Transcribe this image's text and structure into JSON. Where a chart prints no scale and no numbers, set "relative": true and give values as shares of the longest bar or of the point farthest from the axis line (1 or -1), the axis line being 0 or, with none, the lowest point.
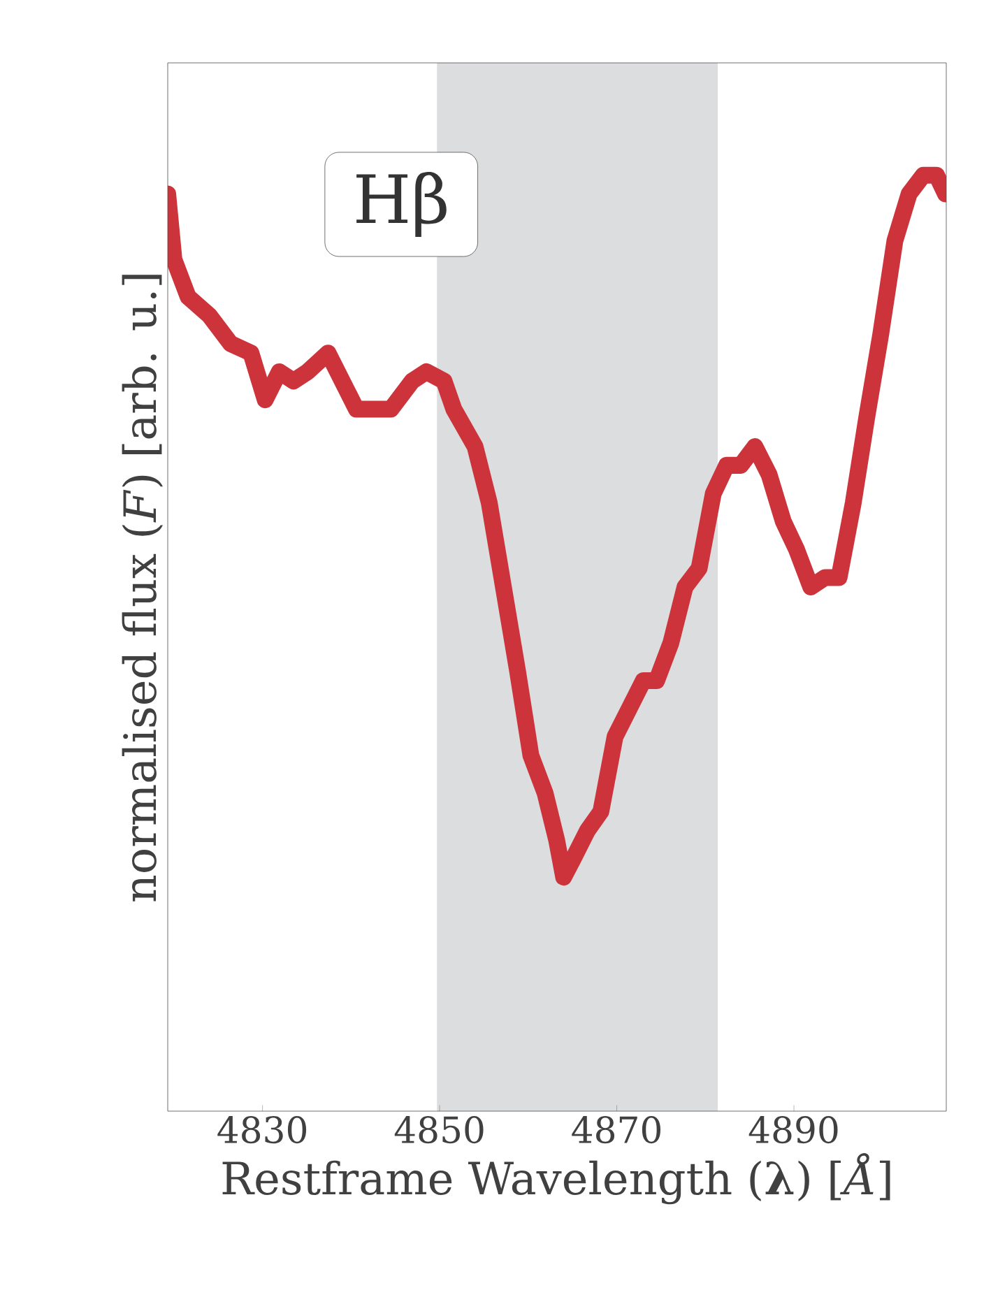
{
  "chart_data": {
    "type": "line",
    "relative": true,
    "xlabel": "Restframe Wavelength (**λ**) [*Å*]",
    "ylabel": "normalised flux (*F*) [arb. u.]",
    "annotations": [
      "Hβ"
    ],
    "xlim": [
      4819.3,
      4907.2
    ],
    "xticks": [
      4830,
      4850,
      4870,
      4890
    ],
    "bands": [
      {
        "axis": "x",
        "from": 4849.7,
        "to": 4881.4,
        "color": "#dcdddf"
      }
    ],
    "series": [
      {
        "color": "#cc333b",
        "x": [
          4819.3,
          4820.0,
          4821.6,
          4824.0,
          4826.4,
          4828.7,
          4830.3,
          4831.9,
          4833.5,
          4835.1,
          4837.4,
          4839.0,
          4840.6,
          4842.2,
          4844.5,
          4846.9,
          4848.5,
          4850.5,
          4851.6,
          4854.0,
          4855.6,
          4857.2,
          4858.8,
          4860.3,
          4861.9,
          4863.2,
          4864.0,
          4865.1,
          4866.7,
          4868.2,
          4869.8,
          4871.4,
          4873.0,
          4874.5,
          4876.1,
          4877.7,
          4879.3,
          4880.9,
          4882.4,
          4884.0,
          4885.6,
          4887.2,
          4888.8,
          4890.3,
          4891.9,
          4893.5,
          4895.1,
          4896.7,
          4898.2,
          4899.8,
          4901.4,
          4903.0,
          4904.6,
          4906.1,
          4907.1
        ],
        "values": [
          0.98,
          0.91,
          0.87,
          0.85,
          0.82,
          0.81,
          0.76,
          0.79,
          0.78,
          0.79,
          0.81,
          0.78,
          0.75,
          0.75,
          0.75,
          0.78,
          0.79,
          0.78,
          0.75,
          0.71,
          0.65,
          0.56,
          0.47,
          0.38,
          0.34,
          0.29,
          0.25,
          0.27,
          0.3,
          0.32,
          0.4,
          0.43,
          0.46,
          0.46,
          0.5,
          0.56,
          0.58,
          0.66,
          0.69,
          0.69,
          0.71,
          0.68,
          0.63,
          0.6,
          0.56,
          0.57,
          0.57,
          0.65,
          0.74,
          0.83,
          0.93,
          0.98,
          1.0,
          1.0,
          0.98
        ]
      }
    ]
  }
}
